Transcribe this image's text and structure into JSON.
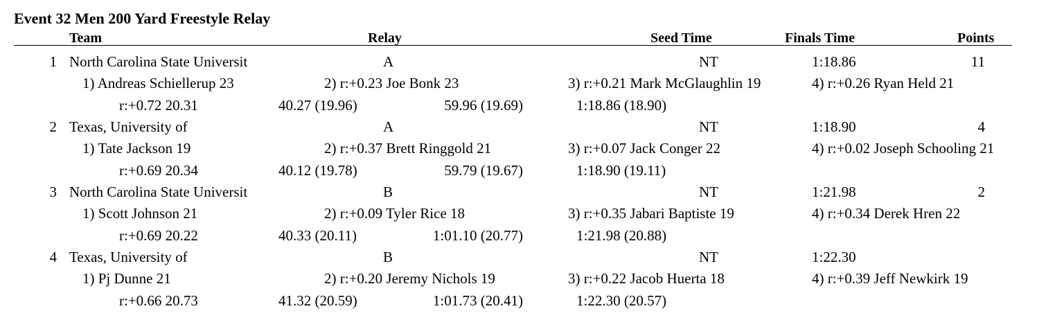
{
  "event_title": "Event 32  Men 200 Yard Freestyle Relay",
  "headers": {
    "team": "Team",
    "relay": "Relay",
    "seed_time": "Seed Time",
    "finals_time": "Finals Time",
    "points": "Points"
  },
  "results": [
    {
      "place": "1",
      "team": "North Carolina State Universit",
      "relay": "A",
      "seed_time": "NT",
      "finals_time": "1:18.86",
      "points": "11",
      "swimmers": [
        "1) Andreas Schiellerup 23",
        "2) r:+0.23 Joe Bonk 23",
        "3) r:+0.21 Mark McGlaughlin 19",
        "4) r:+0.26 Ryan Held 21"
      ],
      "splits": [
        "r:+0.72  20.31",
        "40.27 (19.96)",
        "59.96 (19.69)",
        "1:18.86 (18.90)"
      ]
    },
    {
      "place": "2",
      "team": "Texas, University of",
      "relay": "A",
      "seed_time": "NT",
      "finals_time": "1:18.90",
      "points": "4",
      "swimmers": [
        "1) Tate Jackson 19",
        "2) r:+0.37 Brett Ringgold 21",
        "3) r:+0.07 Jack Conger 22",
        "4) r:+0.02 Joseph Schooling 21"
      ],
      "splits": [
        "r:+0.69  20.34",
        "40.12 (19.78)",
        "59.79 (19.67)",
        "1:18.90 (19.11)"
      ]
    },
    {
      "place": "3",
      "team": "North Carolina State Universit",
      "relay": "B",
      "seed_time": "NT",
      "finals_time": "1:21.98",
      "points": "2",
      "swimmers": [
        "1) Scott Johnson 21",
        "2) r:+0.09 Tyler Rice 18",
        "3) r:+0.35 Jabari Baptiste 19",
        "4) r:+0.34 Derek Hren 22"
      ],
      "splits": [
        "r:+0.69  20.22",
        "40.33 (20.11)",
        "1:01.10 (20.77)",
        "1:21.98 (20.88)"
      ]
    },
    {
      "place": "4",
      "team": "Texas, University of",
      "relay": "B",
      "seed_time": "NT",
      "finals_time": "1:22.30",
      "points": "",
      "swimmers": [
        "1) Pj Dunne 21",
        "2) r:+0.20 Jeremy Nichols 19",
        "3) r:+0.22 Jacob Huerta 18",
        "4) r:+0.39 Jeff Newkirk 19"
      ],
      "splits": [
        "r:+0.66  20.73",
        "41.32 (20.59)",
        "1:01.73 (20.41)",
        "1:22.30 (20.57)"
      ]
    }
  ]
}
